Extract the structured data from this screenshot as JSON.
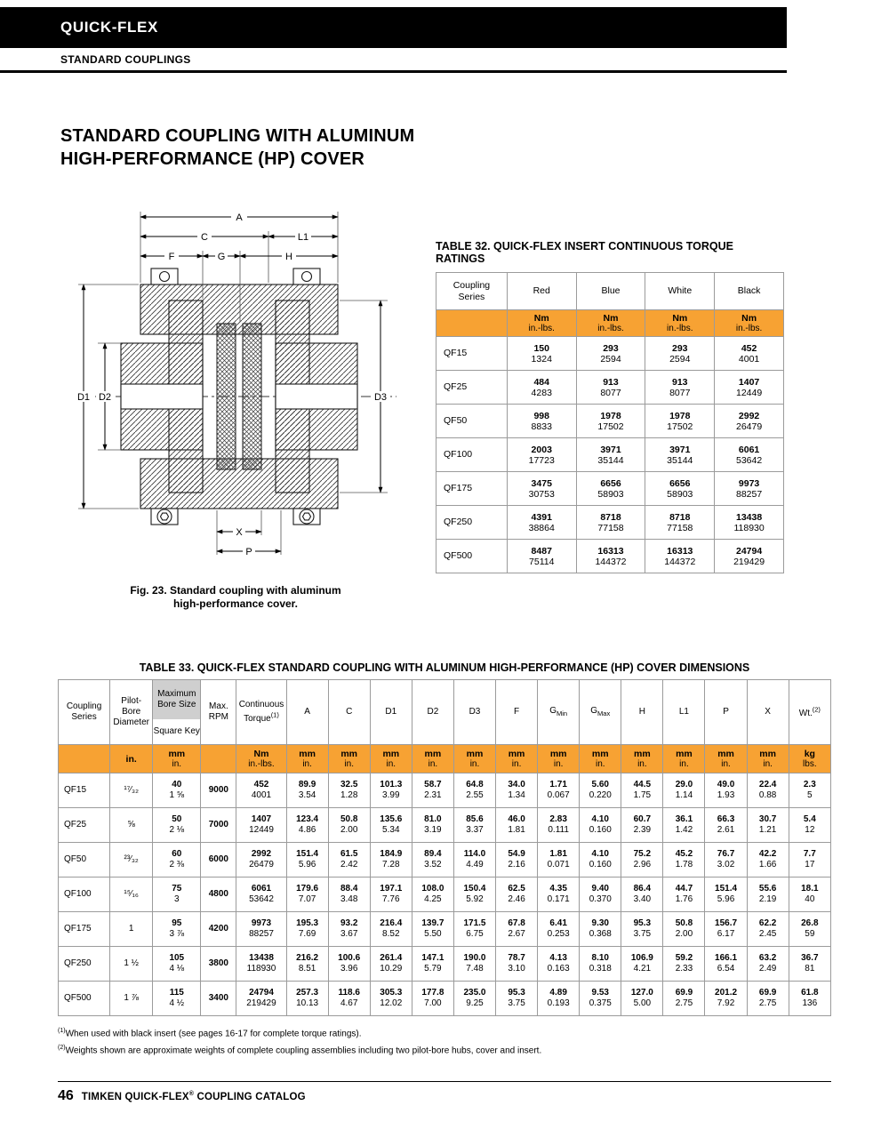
{
  "colors": {
    "accent_orange": "#F7A233",
    "header_gray": "#CFCFCF"
  },
  "header": {
    "brand": "QUICK-FLEX",
    "section": "STANDARD COUPLINGS"
  },
  "title": {
    "line1": "STANDARD COUPLING WITH ALUMINUM",
    "line2": "HIGH-PERFORMANCE (HP) COVER"
  },
  "figure": {
    "caption_line1": "Fig. 23. Standard coupling with aluminum",
    "caption_line2": "high-performance cover.",
    "dims": {
      "a": "A",
      "c": "C",
      "l1": "L1",
      "f": "F",
      "g": "G",
      "h": "H",
      "d1": "D1",
      "d2": "D2",
      "d3": "D3",
      "x": "X",
      "p": "P"
    }
  },
  "table32": {
    "title": "TABLE 32. QUICK-FLEX INSERT CONTINUOUS TORQUE RATINGS",
    "series_header": "Coupling Series",
    "color_headers": [
      "Red",
      "Blue",
      "White",
      "Black"
    ],
    "unit_primary": "Nm",
    "unit_secondary": "in.-lbs.",
    "rows": [
      {
        "series": "QF15",
        "values": [
          [
            "150",
            "1324"
          ],
          [
            "293",
            "2594"
          ],
          [
            "293",
            "2594"
          ],
          [
            "452",
            "4001"
          ]
        ]
      },
      {
        "series": "QF25",
        "values": [
          [
            "484",
            "4283"
          ],
          [
            "913",
            "8077"
          ],
          [
            "913",
            "8077"
          ],
          [
            "1407",
            "12449"
          ]
        ]
      },
      {
        "series": "QF50",
        "values": [
          [
            "998",
            "8833"
          ],
          [
            "1978",
            "17502"
          ],
          [
            "1978",
            "17502"
          ],
          [
            "2992",
            "26479"
          ]
        ]
      },
      {
        "series": "QF100",
        "values": [
          [
            "2003",
            "17723"
          ],
          [
            "3971",
            "35144"
          ],
          [
            "3971",
            "35144"
          ],
          [
            "6061",
            "53642"
          ]
        ]
      },
      {
        "series": "QF175",
        "values": [
          [
            "3475",
            "30753"
          ],
          [
            "6656",
            "58903"
          ],
          [
            "6656",
            "58903"
          ],
          [
            "9973",
            "88257"
          ]
        ]
      },
      {
        "series": "QF250",
        "values": [
          [
            "4391",
            "38864"
          ],
          [
            "8718",
            "77158"
          ],
          [
            "8718",
            "77158"
          ],
          [
            "13438",
            "118930"
          ]
        ]
      },
      {
        "series": "QF500",
        "values": [
          [
            "8487",
            "75114"
          ],
          [
            "16313",
            "144372"
          ],
          [
            "16313",
            "144372"
          ],
          [
            "24794",
            "219429"
          ]
        ]
      }
    ]
  },
  "table33": {
    "title": "TABLE 33. QUICK-FLEX STANDARD COUPLING WITH ALUMINUM HIGH-PERFORMANCE (HP) COVER DIMENSIONS",
    "headers": [
      {
        "label": "Coupling Series"
      },
      {
        "label": "Pilot-Bore Diameter"
      },
      {
        "label": "Maximum Bore Size",
        "sub_label": "Square Key"
      },
      {
        "label": "Max. RPM"
      },
      {
        "label": "Continuous Torque",
        "sup": "(1)"
      },
      {
        "label": "A"
      },
      {
        "label": "C"
      },
      {
        "label": "D1"
      },
      {
        "label": "D2"
      },
      {
        "label": "D3"
      },
      {
        "label": "F"
      },
      {
        "label": "G",
        "sub": "Min"
      },
      {
        "label": "G",
        "sub": "Max"
      },
      {
        "label": "H"
      },
      {
        "label": "L1"
      },
      {
        "label": "P"
      },
      {
        "label": "X"
      },
      {
        "label": "Wt.",
        "sup": "(2)"
      }
    ],
    "units": [
      [
        "",
        ""
      ],
      [
        "in.",
        ""
      ],
      [
        "mm",
        "in."
      ],
      [
        "",
        ""
      ],
      [
        "Nm",
        "in.-lbs."
      ],
      [
        "mm",
        "in."
      ],
      [
        "mm",
        "in."
      ],
      [
        "mm",
        "in."
      ],
      [
        "mm",
        "in."
      ],
      [
        "mm",
        "in."
      ],
      [
        "mm",
        "in."
      ],
      [
        "mm",
        "in."
      ],
      [
        "mm",
        "in."
      ],
      [
        "mm",
        "in."
      ],
      [
        "mm",
        "in."
      ],
      [
        "mm",
        "in."
      ],
      [
        "mm",
        "in."
      ],
      [
        "kg",
        "lbs."
      ]
    ],
    "rows": [
      [
        [
          "QF15",
          ""
        ],
        [
          "¹⁷⁄₃₂",
          ""
        ],
        [
          "40",
          "1 ⅝"
        ],
        [
          "9000",
          ""
        ],
        [
          "452",
          "4001"
        ],
        [
          "89.9",
          "3.54"
        ],
        [
          "32.5",
          "1.28"
        ],
        [
          "101.3",
          "3.99"
        ],
        [
          "58.7",
          "2.31"
        ],
        [
          "64.8",
          "2.55"
        ],
        [
          "34.0",
          "1.34"
        ],
        [
          "1.71",
          "0.067"
        ],
        [
          "5.60",
          "0.220"
        ],
        [
          "44.5",
          "1.75"
        ],
        [
          "29.0",
          "1.14"
        ],
        [
          "49.0",
          "1.93"
        ],
        [
          "22.4",
          "0.88"
        ],
        [
          "2.3",
          "5"
        ]
      ],
      [
        [
          "QF25",
          ""
        ],
        [
          "⅝",
          ""
        ],
        [
          "50",
          "2 ⅛"
        ],
        [
          "7000",
          ""
        ],
        [
          "1407",
          "12449"
        ],
        [
          "123.4",
          "4.86"
        ],
        [
          "50.8",
          "2.00"
        ],
        [
          "135.6",
          "5.34"
        ],
        [
          "81.0",
          "3.19"
        ],
        [
          "85.6",
          "3.37"
        ],
        [
          "46.0",
          "1.81"
        ],
        [
          "2.83",
          "0.111"
        ],
        [
          "4.10",
          "0.160"
        ],
        [
          "60.7",
          "2.39"
        ],
        [
          "36.1",
          "1.42"
        ],
        [
          "66.3",
          "2.61"
        ],
        [
          "30.7",
          "1.21"
        ],
        [
          "5.4",
          "12"
        ]
      ],
      [
        [
          "QF50",
          ""
        ],
        [
          "²³⁄₃₂",
          ""
        ],
        [
          "60",
          "2 ⅜"
        ],
        [
          "6000",
          ""
        ],
        [
          "2992",
          "26479"
        ],
        [
          "151.4",
          "5.96"
        ],
        [
          "61.5",
          "2.42"
        ],
        [
          "184.9",
          "7.28"
        ],
        [
          "89.4",
          "3.52"
        ],
        [
          "114.0",
          "4.49"
        ],
        [
          "54.9",
          "2.16"
        ],
        [
          "1.81",
          "0.071"
        ],
        [
          "4.10",
          "0.160"
        ],
        [
          "75.2",
          "2.96"
        ],
        [
          "45.2",
          "1.78"
        ],
        [
          "76.7",
          "3.02"
        ],
        [
          "42.2",
          "1.66"
        ],
        [
          "7.7",
          "17"
        ]
      ],
      [
        [
          "QF100",
          ""
        ],
        [
          "¹⁵⁄₁₆",
          ""
        ],
        [
          "75",
          "3"
        ],
        [
          "4800",
          ""
        ],
        [
          "6061",
          "53642"
        ],
        [
          "179.6",
          "7.07"
        ],
        [
          "88.4",
          "3.48"
        ],
        [
          "197.1",
          "7.76"
        ],
        [
          "108.0",
          "4.25"
        ],
        [
          "150.4",
          "5.92"
        ],
        [
          "62.5",
          "2.46"
        ],
        [
          "4.35",
          "0.171"
        ],
        [
          "9.40",
          "0.370"
        ],
        [
          "86.4",
          "3.40"
        ],
        [
          "44.7",
          "1.76"
        ],
        [
          "151.4",
          "5.96"
        ],
        [
          "55.6",
          "2.19"
        ],
        [
          "18.1",
          "40"
        ]
      ],
      [
        [
          "QF175",
          ""
        ],
        [
          "1",
          ""
        ],
        [
          "95",
          "3 ⅞"
        ],
        [
          "4200",
          ""
        ],
        [
          "9973",
          "88257"
        ],
        [
          "195.3",
          "7.69"
        ],
        [
          "93.2",
          "3.67"
        ],
        [
          "216.4",
          "8.52"
        ],
        [
          "139.7",
          "5.50"
        ],
        [
          "171.5",
          "6.75"
        ],
        [
          "67.8",
          "2.67"
        ],
        [
          "6.41",
          "0.253"
        ],
        [
          "9.30",
          "0.368"
        ],
        [
          "95.3",
          "3.75"
        ],
        [
          "50.8",
          "2.00"
        ],
        [
          "156.7",
          "6.17"
        ],
        [
          "62.2",
          "2.45"
        ],
        [
          "26.8",
          "59"
        ]
      ],
      [
        [
          "QF250",
          ""
        ],
        [
          "1 ½",
          ""
        ],
        [
          "105",
          "4 ⅛"
        ],
        [
          "3800",
          ""
        ],
        [
          "13438",
          "118930"
        ],
        [
          "216.2",
          "8.51"
        ],
        [
          "100.6",
          "3.96"
        ],
        [
          "261.4",
          "10.29"
        ],
        [
          "147.1",
          "5.79"
        ],
        [
          "190.0",
          "7.48"
        ],
        [
          "78.7",
          "3.10"
        ],
        [
          "4.13",
          "0.163"
        ],
        [
          "8.10",
          "0.318"
        ],
        [
          "106.9",
          "4.21"
        ],
        [
          "59.2",
          "2.33"
        ],
        [
          "166.1",
          "6.54"
        ],
        [
          "63.2",
          "2.49"
        ],
        [
          "36.7",
          "81"
        ]
      ],
      [
        [
          "QF500",
          ""
        ],
        [
          "1 ⅞",
          ""
        ],
        [
          "115",
          "4 ½"
        ],
        [
          "3400",
          ""
        ],
        [
          "24794",
          "219429"
        ],
        [
          "257.3",
          "10.13"
        ],
        [
          "118.6",
          "4.67"
        ],
        [
          "305.3",
          "12.02"
        ],
        [
          "177.8",
          "7.00"
        ],
        [
          "235.0",
          "9.25"
        ],
        [
          "95.3",
          "3.75"
        ],
        [
          "4.89",
          "0.193"
        ],
        [
          "9.53",
          "0.375"
        ],
        [
          "127.0",
          "5.00"
        ],
        [
          "69.9",
          "2.75"
        ],
        [
          "201.2",
          "7.92"
        ],
        [
          "69.9",
          "2.75"
        ],
        [
          "61.8",
          "136"
        ]
      ]
    ]
  },
  "footnotes": [
    {
      "sup": "(1)",
      "text": "When used with black insert (see pages 16-17 for complete torque ratings)."
    },
    {
      "sup": "(2)",
      "text": "Weights shown are approximate weights of complete coupling assemblies including two pilot-bore hubs, cover and insert."
    }
  ],
  "footer": {
    "page_number": "46",
    "text_pre": "TIMKEN QUICK-FLEX",
    "reg": "®",
    "text_post": " COUPLING CATALOG"
  }
}
